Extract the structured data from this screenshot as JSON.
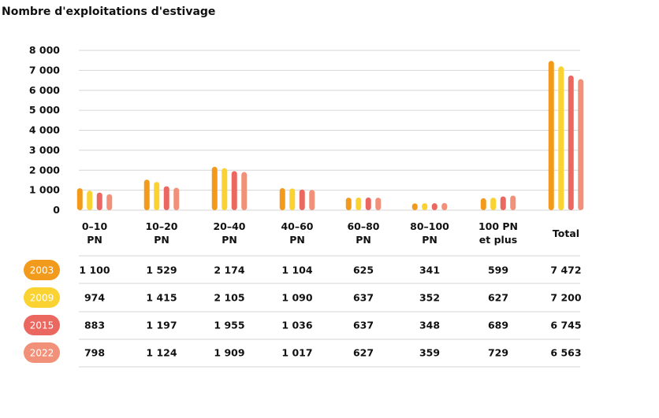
{
  "chart_data": {
    "type": "bar",
    "title": "Nombre d'exploitations d'estivage",
    "categories": [
      [
        "0–10",
        "PN"
      ],
      [
        "10–20",
        "PN"
      ],
      [
        "20–40",
        "PN"
      ],
      [
        "40–60",
        "PN"
      ],
      [
        "60–80",
        "PN"
      ],
      [
        "80–100",
        "PN"
      ],
      [
        "100 PN",
        "et plus"
      ],
      [
        "Total"
      ]
    ],
    "ylim": [
      0,
      8000
    ],
    "yticks": [
      0,
      1000,
      2000,
      3000,
      4000,
      5000,
      6000,
      7000,
      8000
    ],
    "ytick_labels": [
      "0",
      "1 000",
      "2 000",
      "3 000",
      "4 000",
      "5 000",
      "6 000",
      "7 000",
      "8 000"
    ],
    "grid": true,
    "series": [
      {
        "name": "2003",
        "color": "#F29A1C",
        "values": [
          1100,
          1529,
          2174,
          1104,
          625,
          341,
          599,
          7472
        ],
        "labels": [
          "1 100",
          "1 529",
          "2 174",
          "1 104",
          "625",
          "341",
          "599",
          "7 472"
        ]
      },
      {
        "name": "2009",
        "color": "#FAD333",
        "values": [
          974,
          1415,
          2105,
          1090,
          637,
          352,
          627,
          7200
        ],
        "labels": [
          "974",
          "1 415",
          "2 105",
          "1 090",
          "637",
          "352",
          "627",
          "7 200"
        ]
      },
      {
        "name": "2015",
        "color": "#EA6860",
        "values": [
          883,
          1197,
          1955,
          1036,
          637,
          348,
          689,
          6745
        ],
        "labels": [
          "883",
          "1 197",
          "1 955",
          "1 036",
          "637",
          "348",
          "689",
          "6 745"
        ]
      },
      {
        "name": "2022",
        "color": "#F2917A",
        "values": [
          798,
          1124,
          1909,
          1017,
          627,
          359,
          729,
          6563
        ],
        "labels": [
          "798",
          "1 124",
          "1 909",
          "1 017",
          "627",
          "359",
          "729",
          "6 563"
        ]
      }
    ]
  }
}
